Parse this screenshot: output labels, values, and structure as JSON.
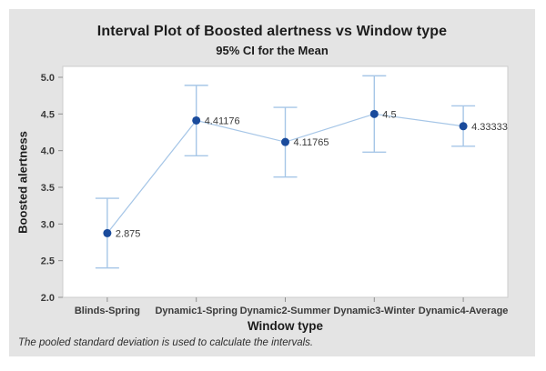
{
  "title": "Interval Plot of Boosted alertness vs Window type",
  "subtitle": "95% CI for the Mean",
  "footnote": "The pooled standard deviation is used to calculate the intervals.",
  "chart_data": {
    "type": "line",
    "variant": "interval-plot-95ci",
    "title": "Interval Plot of Boosted alertness vs Window type",
    "subtitle": "95% CI for the Mean",
    "xlabel": "Window type",
    "ylabel": "Boosted alertness",
    "categories": [
      "Blinds-Spring",
      "Dynamic1-Spring",
      "Dynamic2-Summer",
      "Dynamic3-Winter",
      "Dynamic4-Average"
    ],
    "means": [
      2.875,
      4.41176,
      4.11765,
      4.5,
      4.33333
    ],
    "mean_labels": [
      "2.875",
      "4.41176",
      "4.11765",
      "4.5",
      "4.33333"
    ],
    "ci_low": [
      2.4,
      3.93,
      3.64,
      3.98,
      4.06
    ],
    "ci_high": [
      3.35,
      4.89,
      4.59,
      5.02,
      4.61
    ],
    "ylim": [
      2.0,
      5.0
    ],
    "yticks": [
      2.0,
      2.5,
      3.0,
      3.5,
      4.0,
      4.5,
      5.0
    ],
    "ytick_labels": [
      "2.0",
      "2.5",
      "3.0",
      "3.5",
      "4.0",
      "4.5",
      "5.0"
    ],
    "grid": "off",
    "legend": "none",
    "connect_line": true,
    "colors": {
      "panel_bg": "#e4e4e4",
      "plot_bg": "#ffffff",
      "plot_border": "#cdcdcd",
      "axis_tick": "#8f8f8f",
      "tick_label": "#3a3a3a",
      "marker": "#1a4b9c",
      "interval_line": "#a6c6e7",
      "value_label": "#3a3a3a"
    }
  }
}
